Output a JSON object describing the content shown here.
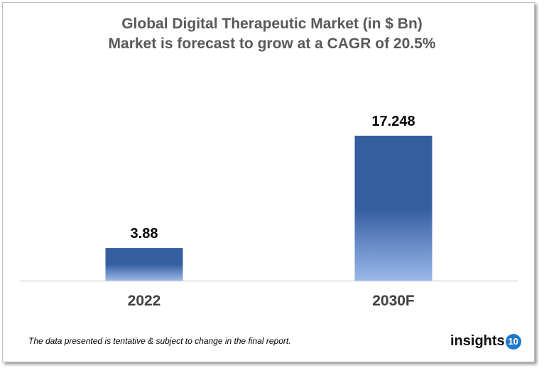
{
  "chart_data": {
    "type": "bar",
    "title": "Global Digital Therapeutic Market (in $ Bn)",
    "subtitle": "Market is forecast to grow at a CAGR of 20.5%",
    "categories": [
      "2022",
      "2030F"
    ],
    "values": [
      3.88,
      17.248
    ],
    "data_labels": [
      "3.88",
      "17.248"
    ],
    "xlabel": "",
    "ylabel": "",
    "ylim": [
      0,
      17.248
    ],
    "grid": false,
    "colors": {
      "bar_top": "#345ea0",
      "bar_bottom": "#9ab8ea"
    }
  },
  "footnote": "The data presented is tentative & subject to change in the final report.",
  "logo": {
    "text": "insights",
    "number": "10"
  }
}
